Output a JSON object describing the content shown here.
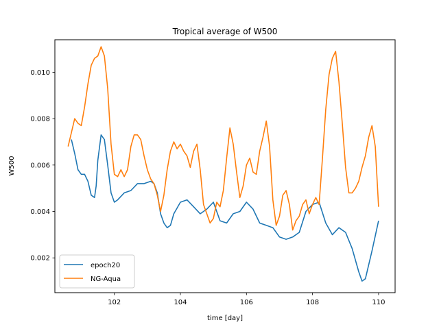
{
  "chart_data": {
    "type": "line",
    "title": "Tropical average of W500",
    "xlabel": "time [day]",
    "ylabel": "W500",
    "xlim": [
      100.2,
      110.5
    ],
    "ylim": [
      0.0005,
      0.0114
    ],
    "xticks": [
      102,
      104,
      106,
      108,
      110
    ],
    "xtick_labels": [
      "102",
      "104",
      "106",
      "108",
      "110"
    ],
    "yticks": [
      0.002,
      0.004,
      0.006,
      0.008,
      0.01
    ],
    "ytick_labels": [
      "0.002",
      "0.004",
      "0.006",
      "0.008",
      "0.010"
    ],
    "grid": false,
    "legend_position": "lower-left",
    "series": [
      {
        "name": "epoch20",
        "color": "#1f77b4",
        "x": [
          100.7,
          100.8,
          100.9,
          101.0,
          101.1,
          101.2,
          101.3,
          101.4,
          101.45,
          101.5,
          101.6,
          101.7,
          101.8,
          101.9,
          102.0,
          102.1,
          102.3,
          102.5,
          102.7,
          102.9,
          103.1,
          103.2,
          103.3,
          103.4,
          103.5,
          103.6,
          103.7,
          103.8,
          104.0,
          104.2,
          104.4,
          104.6,
          104.8,
          105.0,
          105.2,
          105.4,
          105.6,
          105.8,
          106.0,
          106.2,
          106.4,
          106.6,
          106.8,
          107.0,
          107.2,
          107.4,
          107.6,
          107.8,
          108.0,
          108.2,
          108.4,
          108.6,
          108.8,
          109.0,
          109.2,
          109.4,
          109.5,
          109.6,
          109.8,
          110.0
        ],
        "y": [
          0.0071,
          0.0065,
          0.0058,
          0.0056,
          0.0056,
          0.0053,
          0.0047,
          0.0046,
          0.0051,
          0.0062,
          0.0073,
          0.0071,
          0.006,
          0.0048,
          0.0044,
          0.0045,
          0.0048,
          0.0049,
          0.0052,
          0.0052,
          0.0053,
          0.0052,
          0.0048,
          0.0039,
          0.0035,
          0.0033,
          0.0034,
          0.0039,
          0.0044,
          0.0045,
          0.0042,
          0.0039,
          0.0041,
          0.0044,
          0.0036,
          0.0035,
          0.0039,
          0.004,
          0.0044,
          0.0041,
          0.0035,
          0.0034,
          0.0033,
          0.0029,
          0.0028,
          0.0029,
          0.0031,
          0.004,
          0.0043,
          0.0044,
          0.0035,
          0.003,
          0.0033,
          0.0031,
          0.0024,
          0.0014,
          0.001,
          0.0011,
          0.0023,
          0.0036
        ]
      },
      {
        "name": "NG-Aqua",
        "color": "#ff7f0e",
        "x": [
          100.6,
          100.7,
          100.8,
          100.9,
          101.0,
          101.1,
          101.2,
          101.3,
          101.4,
          101.5,
          101.6,
          101.7,
          101.8,
          101.9,
          102.0,
          102.1,
          102.2,
          102.3,
          102.4,
          102.5,
          102.6,
          102.7,
          102.8,
          102.9,
          103.0,
          103.1,
          103.2,
          103.3,
          103.4,
          103.5,
          103.6,
          103.7,
          103.8,
          103.9,
          104.0,
          104.1,
          104.2,
          104.3,
          104.4,
          104.5,
          104.6,
          104.7,
          104.8,
          104.9,
          105.0,
          105.1,
          105.2,
          105.3,
          105.4,
          105.5,
          105.6,
          105.7,
          105.8,
          105.9,
          106.0,
          106.1,
          106.2,
          106.3,
          106.4,
          106.5,
          106.6,
          106.7,
          106.8,
          106.9,
          107.0,
          107.1,
          107.2,
          107.3,
          107.4,
          107.5,
          107.6,
          107.7,
          107.8,
          107.9,
          108.0,
          108.1,
          108.2,
          108.3,
          108.4,
          108.5,
          108.6,
          108.7,
          108.8,
          108.9,
          109.0,
          109.1,
          109.2,
          109.3,
          109.4,
          109.5,
          109.6,
          109.7,
          109.8,
          109.9,
          110.0
        ],
        "y": [
          0.0068,
          0.0074,
          0.008,
          0.0078,
          0.0077,
          0.0085,
          0.0095,
          0.0103,
          0.0106,
          0.0107,
          0.0111,
          0.0107,
          0.0093,
          0.0069,
          0.0056,
          0.0055,
          0.0058,
          0.0055,
          0.0058,
          0.0068,
          0.0073,
          0.0073,
          0.0071,
          0.0064,
          0.0058,
          0.0054,
          0.0052,
          0.0047,
          0.004,
          0.0047,
          0.0058,
          0.0066,
          0.007,
          0.0067,
          0.0069,
          0.0066,
          0.0064,
          0.0059,
          0.0066,
          0.0069,
          0.0058,
          0.0043,
          0.0039,
          0.0035,
          0.0037,
          0.0044,
          0.0042,
          0.0049,
          0.0063,
          0.0076,
          0.0069,
          0.0057,
          0.0046,
          0.0051,
          0.006,
          0.0063,
          0.0057,
          0.0056,
          0.0066,
          0.0072,
          0.0079,
          0.0068,
          0.0045,
          0.0034,
          0.0038,
          0.0047,
          0.0049,
          0.0043,
          0.0032,
          0.0036,
          0.0038,
          0.0043,
          0.0045,
          0.0039,
          0.0043,
          0.0046,
          0.0043,
          0.0063,
          0.0084,
          0.0099,
          0.0106,
          0.0109,
          0.0096,
          0.0078,
          0.0059,
          0.0048,
          0.0048,
          0.005,
          0.0053,
          0.0059,
          0.0064,
          0.0072,
          0.0077,
          0.0068,
          0.0042
        ]
      }
    ]
  }
}
